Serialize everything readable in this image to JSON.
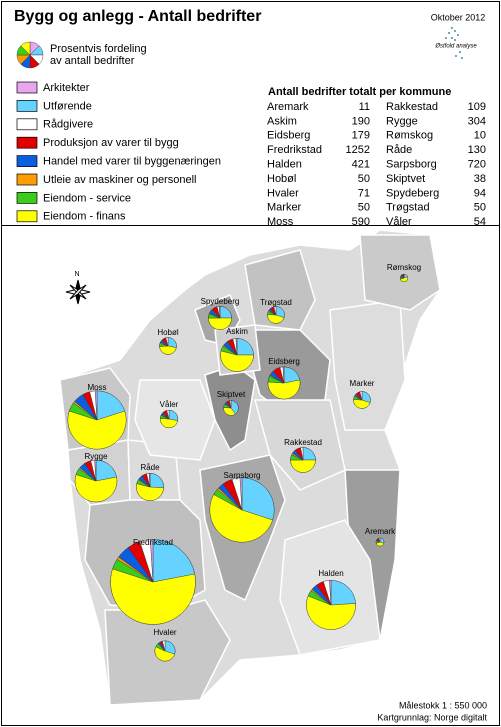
{
  "header": {
    "title": "Bygg og anlegg - Antall bedrifter",
    "date": "Oktober 2012",
    "logo_text": "Østfold analyse"
  },
  "legend": {
    "pie_label": [
      "Prosentvis fordeling",
      "av antall bedrifter"
    ],
    "items": [
      {
        "name": "Arkitekter",
        "color": "#e7a6ee"
      },
      {
        "name": "Utførende",
        "color": "#66d2ff"
      },
      {
        "name": "Rådgivere",
        "color": "#ffffff"
      },
      {
        "name": "Produksjon av varer til bygg",
        "color": "#e00000"
      },
      {
        "name": "Handel med varer til byggenæringen",
        "color": "#0a5fe0"
      },
      {
        "name": "Utleie av maskiner og personell",
        "color": "#ff9d00"
      },
      {
        "name": "Eiendom - service",
        "color": "#3ccc1a"
      },
      {
        "name": "Eiendom - finans",
        "color": "#ffff00"
      }
    ]
  },
  "table": {
    "title": "Antall bedrifter totalt per kommune"
  },
  "municipalities": [
    {
      "name": "Aremark",
      "count": 11,
      "shares": [
        0,
        30,
        5,
        10,
        5,
        0,
        10,
        40
      ]
    },
    {
      "name": "Askim",
      "count": 190,
      "shares": [
        1,
        25,
        3,
        6,
        5,
        1,
        5,
        54
      ]
    },
    {
      "name": "Eidsberg",
      "count": 179,
      "shares": [
        1,
        22,
        3,
        8,
        5,
        1,
        6,
        54
      ]
    },
    {
      "name": "Fredrikstad",
      "count": 1252,
      "shares": [
        1,
        22,
        4,
        5,
        5,
        1,
        4,
        58
      ]
    },
    {
      "name": "Halden",
      "count": 421,
      "shares": [
        1,
        24,
        4,
        5,
        4,
        1,
        4,
        57
      ]
    },
    {
      "name": "Hobøl",
      "count": 50,
      "shares": [
        0,
        28,
        4,
        8,
        6,
        2,
        6,
        46
      ]
    },
    {
      "name": "Hvaler",
      "count": 71,
      "shares": [
        0,
        30,
        4,
        4,
        3,
        1,
        6,
        52
      ]
    },
    {
      "name": "Marker",
      "count": 50,
      "shares": [
        0,
        30,
        4,
        8,
        4,
        2,
        6,
        46
      ]
    },
    {
      "name": "Moss",
      "count": 590,
      "shares": [
        1,
        20,
        3,
        4,
        6,
        1,
        5,
        60
      ]
    },
    {
      "name": "Rakkestad",
      "count": 109,
      "shares": [
        0,
        25,
        3,
        8,
        5,
        2,
        7,
        50
      ]
    },
    {
      "name": "Rygge",
      "count": 304,
      "shares": [
        1,
        22,
        3,
        5,
        5,
        1,
        5,
        58
      ]
    },
    {
      "name": "Rømskog",
      "count": 10,
      "shares": [
        0,
        20,
        0,
        10,
        10,
        0,
        10,
        50
      ]
    },
    {
      "name": "Råde",
      "count": 130,
      "shares": [
        1,
        26,
        3,
        6,
        5,
        1,
        5,
        53
      ]
    },
    {
      "name": "Sarpsborg",
      "count": 720,
      "shares": [
        1,
        30,
        4,
        5,
        3,
        1,
        3,
        53
      ]
    },
    {
      "name": "Skiptvet",
      "count": 38,
      "shares": [
        0,
        40,
        3,
        8,
        5,
        0,
        8,
        36
      ]
    },
    {
      "name": "Spydeberg",
      "count": 94,
      "shares": [
        1,
        25,
        3,
        8,
        6,
        1,
        6,
        50
      ]
    },
    {
      "name": "Trøgstad",
      "count": 50,
      "shares": [
        0,
        30,
        4,
        8,
        4,
        2,
        6,
        46
      ]
    },
    {
      "name": "Våler",
      "count": 54,
      "shares": [
        0,
        28,
        4,
        8,
        5,
        1,
        6,
        48
      ]
    }
  ],
  "map": {
    "north_label": "N",
    "scale": "Målestokk 1 : 550 000",
    "source": "Kartgrunnlag: Norge digitalt"
  }
}
